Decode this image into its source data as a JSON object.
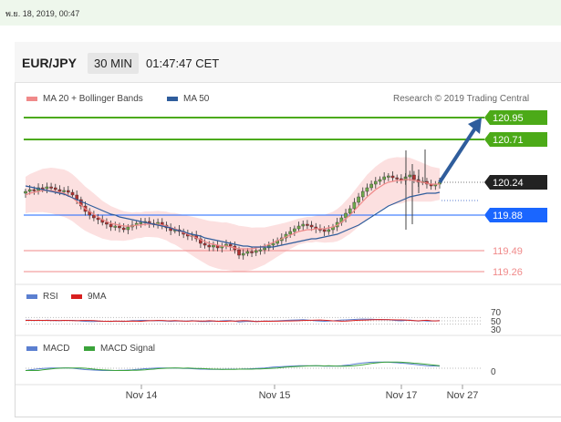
{
  "header": {
    "date_text": "พ.ย. 18, 2019, 00:47",
    "pair": "EUR/JPY",
    "timeframe": "30 MIN",
    "time": "01:47:47 CET",
    "credit": "Research © 2019 Trading Central"
  },
  "legend": {
    "main": [
      {
        "label": "MA 20 + Bollinger Bands",
        "color": "#f08a8a"
      },
      {
        "label": "MA 50",
        "color": "#2f5d9c"
      }
    ],
    "rsi": [
      {
        "label": "RSI",
        "color": "#5b7fd0"
      },
      {
        "label": "9MA",
        "color": "#d81f1f"
      }
    ],
    "macd": [
      {
        "label": "MACD",
        "color": "#5b7fd0"
      },
      {
        "label": "MACD Signal",
        "color": "#3aa33a"
      }
    ]
  },
  "colors": {
    "resistance": "#4caa18",
    "current": "#222222",
    "pivot": "#1a66ff",
    "support": "#f08a8a",
    "arrow": "#2f5d9c",
    "candle_up": "#6ea94b",
    "candle_down": "#b33232"
  },
  "chart_data": {
    "type": "candlestick",
    "price_levels": [
      {
        "value": 120.95,
        "label": "120.95",
        "kind": "resistance"
      },
      {
        "value": 120.71,
        "label": "120.71",
        "kind": "resistance"
      },
      {
        "value": 120.24,
        "label": "120.24",
        "kind": "current"
      },
      {
        "value": 119.88,
        "label": "119.88",
        "kind": "pivot"
      },
      {
        "value": 119.49,
        "label": "119.49",
        "kind": "support"
      },
      {
        "value": 119.26,
        "label": "119.26",
        "kind": "support"
      }
    ],
    "x_ticks": [
      "Nov 14",
      "Nov 15",
      "Nov 17",
      "Nov 27"
    ],
    "rsi_ticks": [
      "70",
      "50",
      "30"
    ],
    "macd_ticks": [
      "0"
    ],
    "close": [
      120.14,
      120.16,
      120.15,
      120.18,
      120.17,
      120.19,
      120.18,
      120.16,
      120.14,
      120.15,
      120.13,
      120.1,
      120.05,
      119.98,
      119.92,
      119.88,
      119.85,
      119.83,
      119.8,
      119.78,
      119.75,
      119.76,
      119.74,
      119.72,
      119.75,
      119.77,
      119.79,
      119.8,
      119.81,
      119.79,
      119.78,
      119.8,
      119.77,
      119.74,
      119.71,
      119.72,
      119.7,
      119.67,
      119.65,
      119.66,
      119.62,
      119.57,
      119.55,
      119.53,
      119.55,
      119.52,
      119.54,
      119.56,
      119.54,
      119.5,
      119.44,
      119.46,
      119.48,
      119.47,
      119.49,
      119.5,
      119.52,
      119.55,
      119.57,
      119.6,
      119.63,
      119.67,
      119.7,
      119.73,
      119.76,
      119.78,
      119.77,
      119.75,
      119.73,
      119.72,
      119.7,
      119.72,
      119.75,
      119.8,
      119.85,
      119.9,
      119.95,
      120.02,
      120.08,
      120.14,
      120.18,
      120.22,
      120.25,
      120.27,
      120.3,
      120.31,
      120.29,
      120.28,
      120.26,
      120.3,
      120.32,
      120.27,
      120.24,
      120.25,
      120.22,
      120.2,
      120.22,
      120.24
    ],
    "ma20": [
      120.1,
      120.12,
      120.13,
      120.14,
      120.15,
      120.15,
      120.15,
      120.14,
      120.13,
      120.12,
      120.1,
      120.07,
      120.03,
      119.99,
      119.95,
      119.92,
      119.89,
      119.86,
      119.83,
      119.81,
      119.79,
      119.78,
      119.77,
      119.76,
      119.76,
      119.76,
      119.77,
      119.77,
      119.78,
      119.78,
      119.78,
      119.78,
      119.77,
      119.76,
      119.74,
      119.73,
      119.71,
      119.69,
      119.67,
      119.65,
      119.63,
      119.61,
      119.59,
      119.57,
      119.56,
      119.55,
      119.54,
      119.54,
      119.53,
      119.52,
      119.51,
      119.51,
      119.51,
      119.51,
      119.52,
      119.53,
      119.54,
      119.56,
      119.58,
      119.6,
      119.62,
      119.64,
      119.66,
      119.68,
      119.7,
      119.71,
      119.72,
      119.72,
      119.73,
      119.73,
      119.73,
      119.74,
      119.75,
      119.77,
      119.8,
      119.84,
      119.88,
      119.93,
      119.98,
      120.03,
      120.08,
      120.12,
      120.16,
      120.19,
      120.22,
      120.24,
      120.25,
      120.26,
      120.26,
      120.27,
      120.27,
      120.26,
      120.25,
      120.24,
      120.23,
      120.22,
      120.22,
      120.22
    ],
    "ma50": [
      120.2,
      120.19,
      120.18,
      120.17,
      120.16,
      120.15,
      120.14,
      120.13,
      120.12,
      120.11,
      120.09,
      120.07,
      120.05,
      120.03,
      120.01,
      119.99,
      119.97,
      119.95,
      119.93,
      119.91,
      119.89,
      119.88,
      119.86,
      119.85,
      119.84,
      119.83,
      119.82,
      119.81,
      119.8,
      119.79,
      119.78,
      119.77,
      119.76,
      119.75,
      119.74,
      119.72,
      119.71,
      119.7,
      119.68,
      119.67,
      119.66,
      119.65,
      119.63,
      119.62,
      119.61,
      119.6,
      119.59,
      119.58,
      119.57,
      119.56,
      119.55,
      119.54,
      119.54,
      119.53,
      119.53,
      119.53,
      119.53,
      119.53,
      119.53,
      119.54,
      119.55,
      119.56,
      119.57,
      119.58,
      119.59,
      119.6,
      119.61,
      119.62,
      119.62,
      119.63,
      119.64,
      119.65,
      119.66,
      119.67,
      119.69,
      119.71,
      119.73,
      119.75,
      119.77,
      119.8,
      119.83,
      119.86,
      119.89,
      119.92,
      119.95,
      119.98,
      120.0,
      120.02,
      120.04,
      120.06,
      120.08,
      120.09,
      120.1,
      120.11,
      120.12,
      120.12,
      120.12,
      120.13
    ],
    "forecast_arrow": {
      "from": 120.24,
      "to": 120.95
    }
  }
}
